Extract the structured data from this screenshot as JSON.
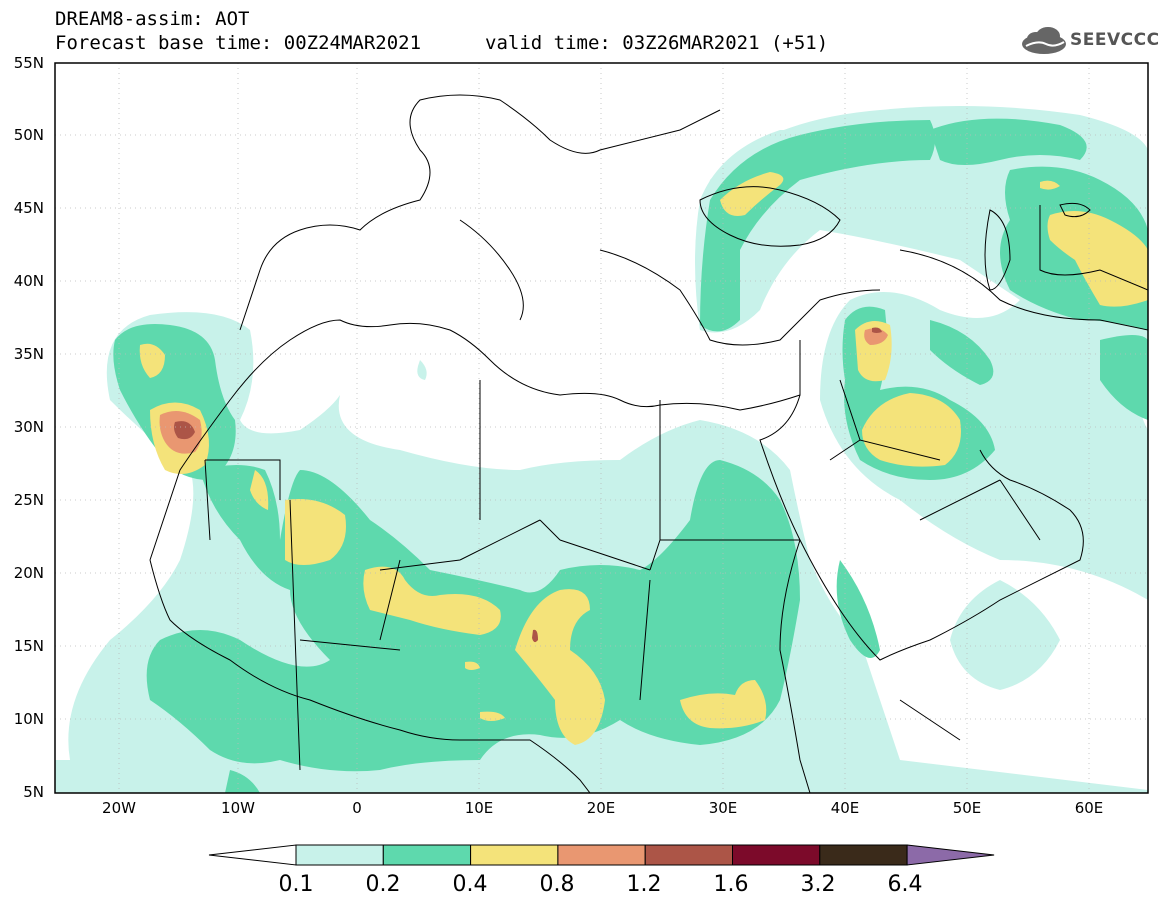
{
  "header": {
    "line1": "DREAM8-assim: AOT",
    "line2": "Forecast base time: 00Z24MAR2021",
    "valid": "valid time: 03Z26MAR2021 (+51)",
    "logo_text": "SEEVCCC"
  },
  "map": {
    "lon_range": [
      -25,
      65
    ],
    "lat_range": [
      5,
      55
    ],
    "lat_labels": [
      "55N",
      "50N",
      "45N",
      "40N",
      "35N",
      "30N",
      "25N",
      "20N",
      "15N",
      "10N",
      "5N"
    ],
    "lon_labels": [
      "20W",
      "10W",
      "0",
      "10E",
      "20E",
      "30E",
      "40E",
      "50E",
      "60E"
    ]
  },
  "colorbar": {
    "levels": [
      "0.1",
      "0.2",
      "0.4",
      "0.8",
      "1.2",
      "1.6",
      "3.2",
      "6.4"
    ],
    "colors": [
      "#ffffff",
      "#c8f2ea",
      "#5ed9ad",
      "#f4e37a",
      "#e99771",
      "#ac5547",
      "#7c0a2a",
      "#3a2a1a",
      "#8c6aa8"
    ]
  }
}
